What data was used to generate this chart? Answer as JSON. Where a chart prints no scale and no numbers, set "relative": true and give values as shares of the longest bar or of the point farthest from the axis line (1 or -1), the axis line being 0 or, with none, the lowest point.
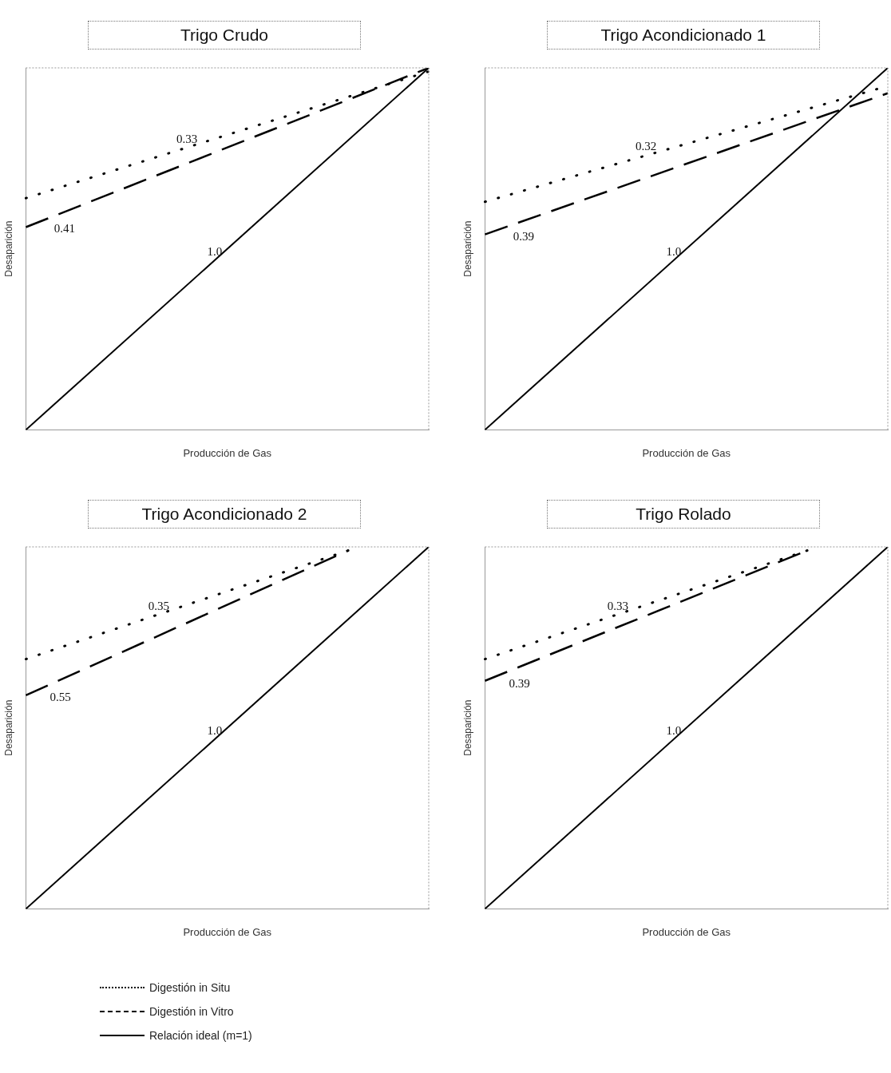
{
  "chart_data": [
    {
      "type": "line",
      "title": "Trigo Crudo",
      "xlabel": "Producción de Gas",
      "ylabel": "Desaparición",
      "relative": true,
      "legend": "bottom",
      "categories": [
        null,
        null,
        null,
        null,
        null,
        null,
        null,
        null,
        null,
        null,
        null
      ],
      "series": [
        {
          "name": "Digestión in Situ",
          "color": "#000000",
          "line_style": "dotted",
          "values": [
            0.64,
            null,
            null,
            null,
            null,
            null,
            null,
            null,
            null,
            null,
            0.99
          ]
        },
        {
          "name": "Digestión in Vitro",
          "color": "#000000",
          "line_style": "dashed",
          "values": [
            0.56,
            null,
            null,
            null,
            null,
            null,
            null,
            null,
            null,
            null,
            1
          ]
        },
        {
          "name": "Relación ideal (m=1)",
          "color": "#000000",
          "line_style": "solid",
          "values": [
            0,
            null,
            null,
            null,
            null,
            null,
            null,
            null,
            null,
            null,
            1
          ]
        }
      ],
      "annotations": [
        "0.33",
        "0.41",
        "1.0"
      ]
    },
    {
      "type": "line",
      "title": "Trigo Acondicionado 1",
      "xlabel": "Producción de Gas",
      "ylabel": "Desaparición",
      "relative": true,
      "categories": [
        null,
        null,
        null,
        null,
        null,
        null,
        null,
        null,
        null,
        null,
        null
      ],
      "series": [
        {
          "color": "#000000",
          "line_style": "dotted",
          "values": [
            0.63,
            null,
            null,
            null,
            null,
            null,
            null,
            null,
            null,
            null,
            0.95
          ]
        },
        {
          "color": "#000000",
          "line_style": "dashed",
          "values": [
            0.54,
            null,
            null,
            null,
            null,
            null,
            null,
            null,
            null,
            null,
            0.93
          ]
        },
        {
          "color": "#000000",
          "line_style": "solid",
          "values": [
            0,
            null,
            null,
            null,
            null,
            null,
            null,
            null,
            null,
            null,
            1
          ]
        }
      ],
      "annotations": [
        "0.32",
        "0.39",
        "1.0"
      ]
    },
    {
      "type": "line",
      "title": "Trigo Acondicionado 2",
      "xlabel": "Producción de Gas",
      "ylabel": "Desaparición",
      "relative": true,
      "categories": [
        null,
        null,
        null,
        null,
        null,
        null,
        null,
        null,
        null,
        null,
        null
      ],
      "series": [
        {
          "color": "#000000",
          "line_style": "dotted",
          "values": [
            0.69,
            null,
            null,
            null,
            null,
            null,
            null,
            null,
            0.99,
            null,
            null
          ]
        },
        {
          "color": "#000000",
          "line_style": "dashed",
          "values": [
            0.59,
            null,
            null,
            null,
            null,
            null,
            null,
            null,
            0.99,
            null,
            null
          ]
        },
        {
          "color": "#000000",
          "line_style": "solid",
          "values": [
            0,
            null,
            null,
            null,
            null,
            null,
            null,
            null,
            null,
            null,
            1
          ]
        }
      ],
      "annotations": [
        "0.35",
        "0.55",
        "1.0"
      ]
    },
    {
      "type": "line",
      "title": "Trigo Rolado",
      "xlabel": "Producción de Gas",
      "ylabel": "Desaparición",
      "relative": true,
      "categories": [
        null,
        null,
        null,
        null,
        null,
        null,
        null,
        null,
        null,
        null,
        null
      ],
      "series": [
        {
          "color": "#000000",
          "line_style": "dotted",
          "values": [
            0.69,
            null,
            null,
            null,
            null,
            null,
            null,
            null,
            0.99,
            null,
            null
          ]
        },
        {
          "color": "#000000",
          "line_style": "dashed",
          "values": [
            0.63,
            null,
            null,
            null,
            null,
            null,
            null,
            null,
            0.99,
            null,
            null
          ]
        },
        {
          "color": "#000000",
          "line_style": "solid",
          "values": [
            0,
            null,
            null,
            null,
            null,
            null,
            null,
            null,
            null,
            null,
            1
          ]
        }
      ],
      "annotations": [
        "0.33",
        "0.39",
        "1.0"
      ]
    }
  ]
}
